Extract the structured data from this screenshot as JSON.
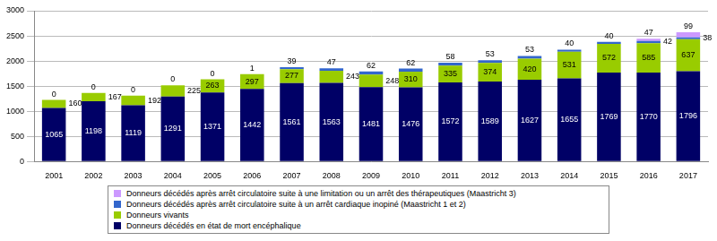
{
  "chart_data": {
    "type": "bar",
    "stacked": true,
    "categories": [
      "2001",
      "2002",
      "2003",
      "2004",
      "2005",
      "2006",
      "2007",
      "2008",
      "2009",
      "2010",
      "2011",
      "2012",
      "2013",
      "2014",
      "2015",
      "2016",
      "2017"
    ],
    "series": [
      {
        "name": "Donneurs décédés en état de mort encéphalique",
        "color": "#000066",
        "values": [
          1065,
          1198,
          1119,
          1291,
          1371,
          1442,
          1561,
          1563,
          1481,
          1476,
          1572,
          1589,
          1627,
          1655,
          1769,
          1770,
          1796
        ]
      },
      {
        "name": "Donneurs vivants",
        "color": "#99cc00",
        "values": [
          160,
          167,
          192,
          225,
          263,
          297,
          277,
          243,
          248,
          310,
          335,
          374,
          420,
          531,
          572,
          585,
          637
        ]
      },
      {
        "name": "Donneurs décédés après arrêt circulatoire suite à un arrêt cardiaque inopiné (Maastricht 1 et 2)",
        "color": "#3366cc",
        "values": [
          0,
          0,
          0,
          0,
          0,
          1,
          39,
          47,
          62,
          62,
          58,
          53,
          53,
          40,
          40,
          42,
          38
        ]
      },
      {
        "name": "Donneurs décédés après arrêt circulatoire suite à une limitation ou un arrêt des thérapeutiques (Maastricht 3)",
        "color": "#cc99ff",
        "values": [
          null,
          null,
          null,
          null,
          null,
          null,
          null,
          null,
          null,
          null,
          null,
          null,
          null,
          null,
          null,
          47,
          99
        ]
      }
    ],
    "ylim": [
      0,
      3000
    ],
    "yticks": [
      0,
      500,
      1000,
      1500,
      2000,
      2500,
      3000
    ],
    "grid": true,
    "data_labels": true,
    "legend": "bottom"
  }
}
